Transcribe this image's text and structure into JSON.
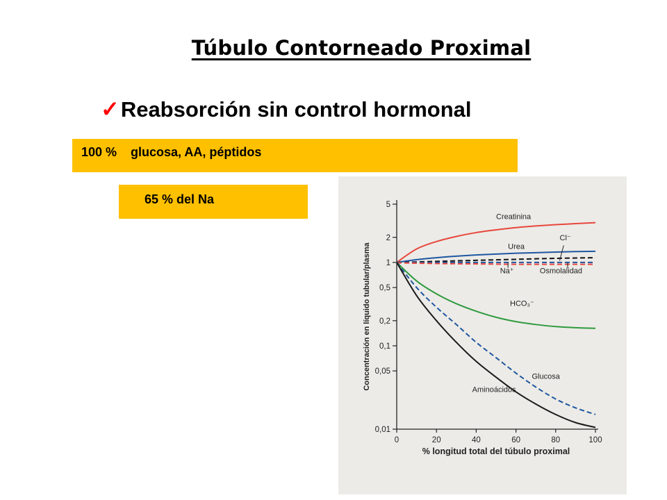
{
  "slide": {
    "title": "Túbulo Contorneado Proximal",
    "bullet_check": "✓",
    "bullet_text": "Reabsorción sin control hormonal",
    "box1_text": "100 %    glucosa, AA, péptidos",
    "box2_text": "65 % del Na"
  },
  "chart_data": {
    "type": "line",
    "xlabel": "% longitud total del túbulo proximal",
    "ylabel": "Concentración en líquido tubular/plasma",
    "x_ticks": [
      0,
      20,
      40,
      60,
      80,
      100
    ],
    "x_tick_labels": [
      "0",
      "20",
      "40",
      "60",
      "80",
      "100"
    ],
    "y_scale": "log",
    "y_ticks": [
      0.01,
      0.05,
      0.1,
      0.2,
      0.5,
      1,
      2,
      5
    ],
    "y_tick_labels": [
      "0,01",
      "0,05",
      "0,1",
      "0,2",
      "0,5",
      "1",
      "2",
      "5"
    ],
    "xlim": [
      0,
      100
    ],
    "ylim": [
      0.01,
      5
    ],
    "series": [
      {
        "name": "Creatinina",
        "color": "#e8463c",
        "dash": "solid",
        "x": [
          0,
          10,
          20,
          30,
          40,
          50,
          60,
          70,
          80,
          90,
          100
        ],
        "y": [
          1,
          1.45,
          1.78,
          2.05,
          2.28,
          2.46,
          2.62,
          2.74,
          2.84,
          2.92,
          3.0
        ]
      },
      {
        "name": "Urea",
        "color": "#1e56a0",
        "dash": "solid",
        "x": [
          0,
          10,
          20,
          30,
          40,
          50,
          60,
          70,
          80,
          90,
          100
        ],
        "y": [
          1,
          1.08,
          1.14,
          1.19,
          1.23,
          1.26,
          1.29,
          1.31,
          1.33,
          1.35,
          1.36
        ]
      },
      {
        "name": "Cl⁻",
        "color": "#111111",
        "dash": "dashed",
        "x": [
          0,
          20,
          40,
          60,
          80,
          100
        ],
        "y": [
          1,
          1.03,
          1.06,
          1.09,
          1.12,
          1.14
        ]
      },
      {
        "name": "Na⁺",
        "color": "#1e56a0",
        "dash": "dashed",
        "x": [
          0,
          20,
          40,
          60,
          80,
          100
        ],
        "y": [
          1,
          1,
          1,
          1,
          1,
          1
        ]
      },
      {
        "name": "Osmolalidad",
        "color": "#e8463c",
        "dash": "dashed",
        "x": [
          0,
          20,
          40,
          60,
          80,
          100
        ],
        "y": [
          0.99,
          0.97,
          0.96,
          0.95,
          0.95,
          0.95
        ]
      },
      {
        "name": "HCO₃⁻",
        "color": "#2e9a3e",
        "dash": "solid",
        "x": [
          0,
          10,
          20,
          30,
          40,
          50,
          60,
          70,
          80,
          90,
          100
        ],
        "y": [
          1,
          0.6,
          0.42,
          0.32,
          0.26,
          0.22,
          0.195,
          0.18,
          0.17,
          0.165,
          0.162
        ]
      },
      {
        "name": "Glucosa",
        "color": "#1e56a0",
        "dash": "dashed",
        "x": [
          0,
          10,
          20,
          30,
          40,
          50,
          60,
          70,
          80,
          90,
          100
        ],
        "y": [
          1,
          0.5,
          0.29,
          0.18,
          0.11,
          0.072,
          0.047,
          0.032,
          0.023,
          0.018,
          0.015
        ]
      },
      {
        "name": "Aminoácidos",
        "color": "#1a1a1a",
        "dash": "solid",
        "x": [
          0,
          10,
          20,
          30,
          40,
          50,
          60,
          70,
          80,
          90,
          100
        ],
        "y": [
          1,
          0.4,
          0.2,
          0.11,
          0.065,
          0.042,
          0.028,
          0.02,
          0.015,
          0.012,
          0.0105
        ]
      }
    ],
    "annotations": [
      {
        "text": "Creatinina",
        "x": 50,
        "y": 3.3
      },
      {
        "text": "Urea",
        "x": 56,
        "y": 1.45
      },
      {
        "text": "Cl⁻",
        "x": 82,
        "y": 1.85
      },
      {
        "text": "Na⁺",
        "x": 52,
        "y": 0.74
      },
      {
        "text": "Osmolalidad",
        "x": 72,
        "y": 0.74
      },
      {
        "text": "HCO₃⁻",
        "x": 57,
        "y": 0.3
      },
      {
        "text": "Glucosa",
        "x": 68,
        "y": 0.04
      },
      {
        "text": "Aminoácidos",
        "x": 38,
        "y": 0.028
      }
    ]
  }
}
